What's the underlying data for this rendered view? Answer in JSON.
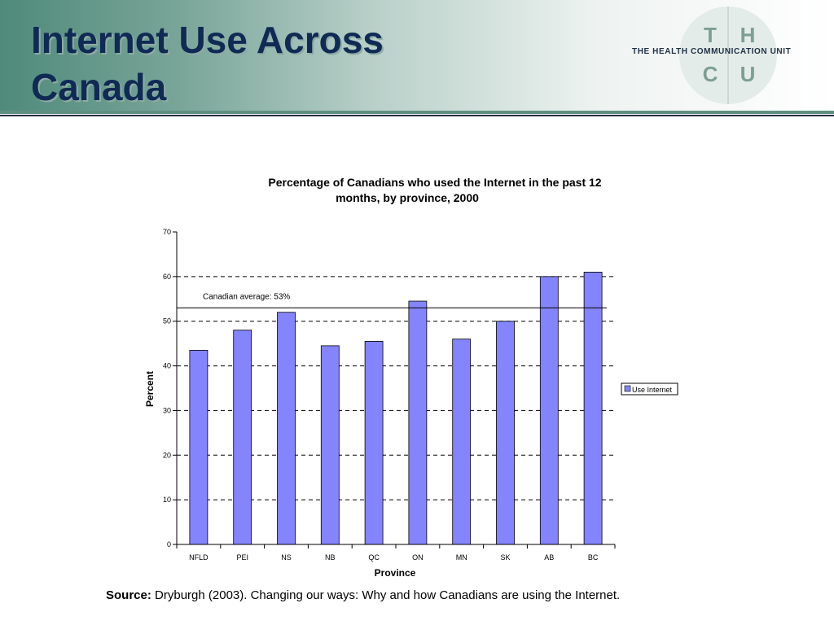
{
  "slide": {
    "title_line1": "Internet Use Across",
    "title_line2": "Canada"
  },
  "logo": {
    "letters": [
      "T",
      "H",
      "C",
      "U"
    ],
    "text": "THE HEALTH COMMUNICATION UNIT",
    "colors": {
      "letters": "#7d9e95",
      "circle": "#e4ece9"
    }
  },
  "chart_data": {
    "type": "bar",
    "title_line1": "Percentage of Canadians who used the Internet in the past 12",
    "title_line2": "months, by province, 2000",
    "categories": [
      "NFLD",
      "PEI",
      "NS",
      "NB",
      "QC",
      "ON",
      "MN",
      "SK",
      "AB",
      "BC"
    ],
    "series": [
      {
        "name": "Use Internet",
        "values": [
          43.5,
          48,
          52,
          44.5,
          45.5,
          54.5,
          46,
          50,
          60,
          61
        ],
        "color": "#8484fc"
      }
    ],
    "xlabel": "Province",
    "ylabel": "Percent",
    "ylim": [
      0,
      70
    ],
    "yticks": [
      "0",
      "10",
      "20",
      "30",
      "40",
      "50",
      "60",
      "70"
    ],
    "grid": "dashed horizontal",
    "reference_line": {
      "value": 53,
      "label": "Canadian average:  53%"
    },
    "legend": "right"
  },
  "source": {
    "label": "Source:",
    "text": " Dryburgh (2003). Changing our ways: Why and how Canadians are using the Internet."
  }
}
